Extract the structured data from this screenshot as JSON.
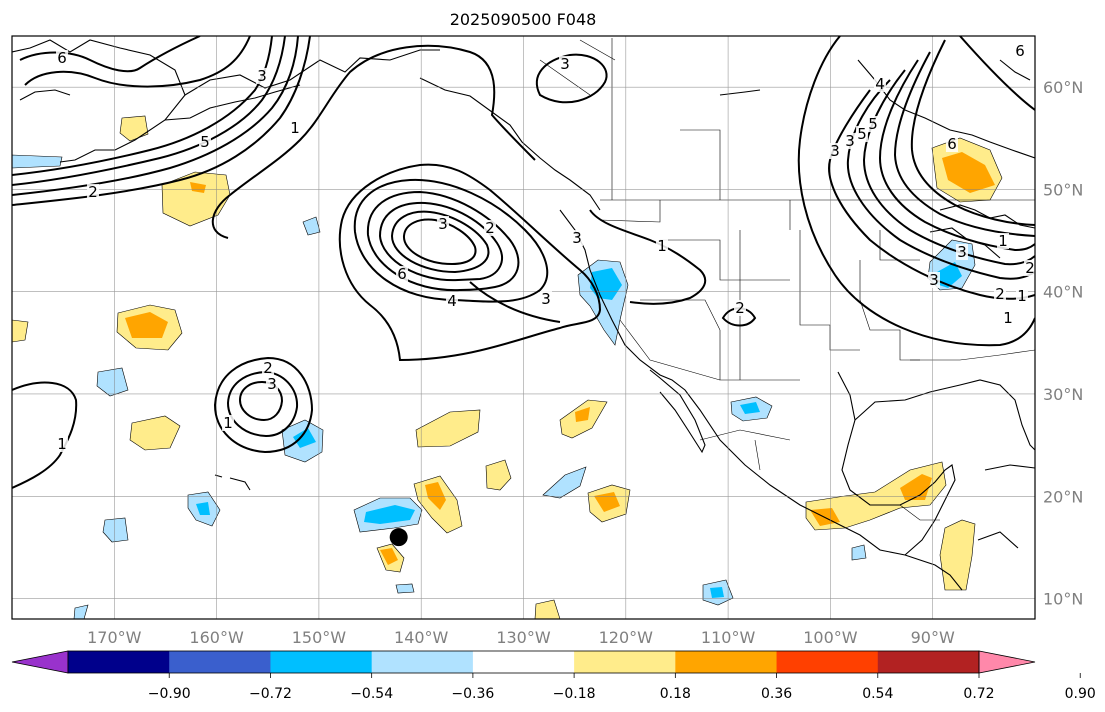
{
  "title": "2025090500 F048",
  "map": {
    "lon_range": [
      -180,
      -80
    ],
    "lat_range": [
      8,
      65
    ],
    "lon_ticks": [
      -170,
      -160,
      -150,
      -140,
      -130,
      -120,
      -110,
      -100,
      -90
    ],
    "lat_ticks": [
      10,
      20,
      30,
      40,
      50,
      60
    ],
    "lon_labels": [
      "170°W",
      "160°W",
      "150°W",
      "140°W",
      "130°W",
      "120°W",
      "110°W",
      "100°W",
      "90°W"
    ],
    "lat_labels": [
      "10°N",
      "20°N",
      "30°N",
      "40°N",
      "50°N",
      "60°N"
    ],
    "grid": true,
    "marker": {
      "lon": -142.2,
      "lat": 16.0,
      "color": "#000000"
    }
  },
  "colorbar": {
    "colors": [
      "#9932cc",
      "#00008b",
      "#3a5fcd",
      "#00bfff",
      "#b0e2ff",
      "#ffffff",
      "#ffec8b",
      "#ffa500",
      "#ff4000",
      "#b22222",
      "#ff88aa"
    ],
    "tick_labels": [
      "−0.90",
      "−0.72",
      "−0.54",
      "−0.36",
      "−0.18",
      "0.18",
      "0.36",
      "0.54",
      "0.72",
      "0.90"
    ],
    "extend": "both"
  },
  "contour_labels": [
    "6",
    "2",
    "3",
    "3",
    "1",
    "5",
    "3",
    "1",
    "2",
    "2",
    "6",
    "4",
    "3",
    "2",
    "3",
    "1",
    "1",
    "2",
    "3",
    "3",
    "1",
    "1",
    "3",
    "4",
    "5",
    "6",
    "6",
    "5",
    "2",
    "3",
    "3",
    "1"
  ]
}
